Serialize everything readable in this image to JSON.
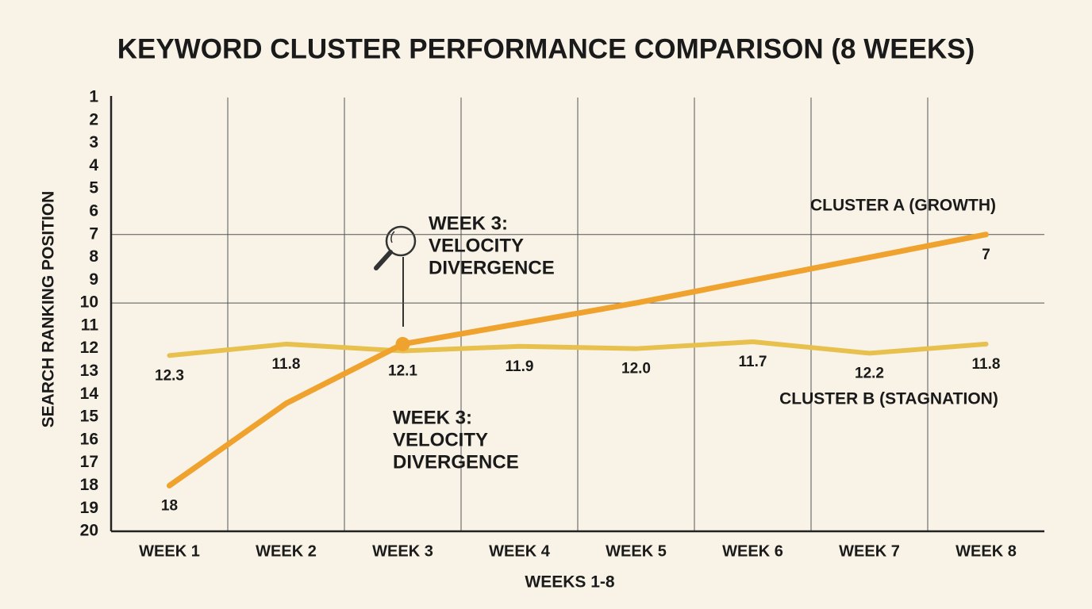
{
  "chart_data": {
    "type": "line",
    "title": "KEYWORD CLUSTER PERFORMANCE COMPARISON (8 WEEKS)",
    "x_label": "WEEKS 1-8",
    "y_label": "SEARCH RANKING POSITION",
    "categories": [
      "WEEK 1",
      "WEEK 2",
      "WEEK 3",
      "WEEK 4",
      "WEEK 5",
      "WEEK 6",
      "WEEK 7",
      "WEEK 8"
    ],
    "series": [
      {
        "name": "CLUSTER A (GROWTH)",
        "color": "#f0a22e",
        "values": [
          18,
          14.4,
          11.8,
          10.9,
          10,
          9,
          8,
          7
        ],
        "value_labels": [
          "18",
          null,
          null,
          null,
          null,
          null,
          null,
          "7"
        ]
      },
      {
        "name": "CLUSTER B (STAGNATION)",
        "color": "#e8c04e",
        "values": [
          12.3,
          11.8,
          12.1,
          11.9,
          12.0,
          11.7,
          12.2,
          11.8
        ],
        "value_labels": [
          "12.3",
          "11.8",
          "12.1",
          "11.9",
          "12.0",
          "11.7",
          "12.2",
          "11.8"
        ]
      }
    ],
    "annotations": [
      [
        "WEEK 3:",
        "VELOCITY",
        "DIVERGENCE"
      ],
      [
        "WEEK 3:",
        "VELOCITY",
        "DIVERGENCE"
      ]
    ],
    "ylim": [
      1,
      20
    ],
    "y_inverted": true,
    "yticks": [
      1,
      2,
      3,
      4,
      5,
      6,
      7,
      8,
      9,
      10,
      11,
      12,
      13,
      14,
      15,
      16,
      17,
      18,
      19,
      20
    ],
    "ygrid": [
      7,
      10
    ],
    "xgrid": true
  }
}
